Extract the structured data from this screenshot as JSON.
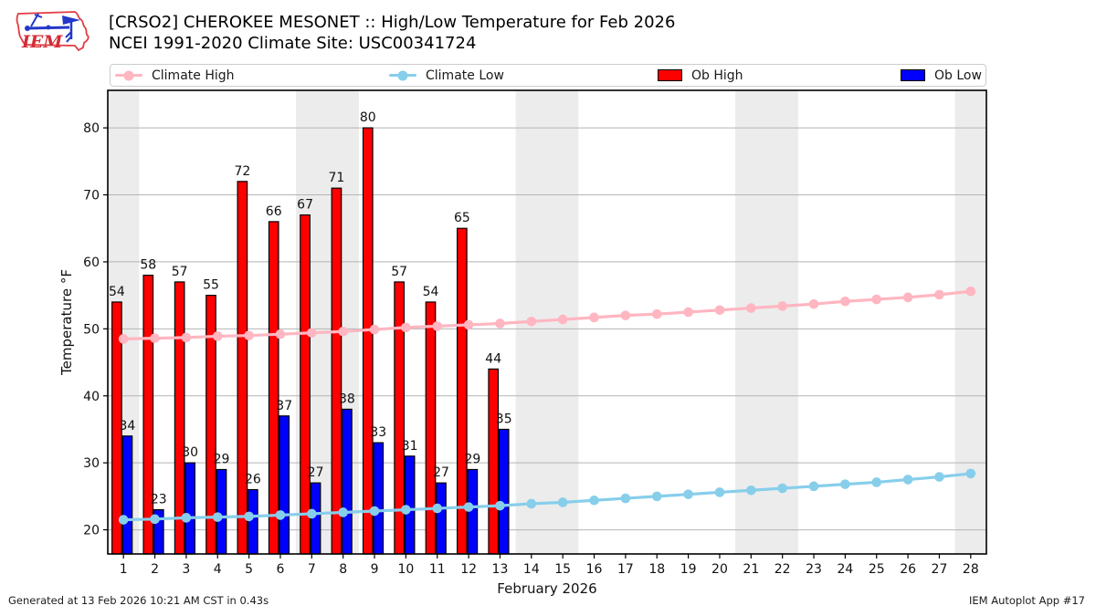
{
  "header": {
    "title_line1": "[CRSO2] CHEROKEE MESONET :: High/Low Temperature for Feb 2026",
    "title_line2": "NCEI 1991-2020 Climate Site: USC00341724",
    "logo_text": "IEM"
  },
  "footer": {
    "left": "Generated at 13 Feb 2026 10:21 AM CST in 0.43s",
    "right": "IEM Autoplot App #17"
  },
  "chart_data": {
    "type": "bar",
    "title": "[CRSO2] CHEROKEE MESONET :: High/Low Temperature for Feb 2026",
    "subtitle": "NCEI 1991-2020 Climate Site: USC00341724",
    "xlabel": "February 2026",
    "ylabel": "Temperature °F",
    "legend_position": "top",
    "grid": true,
    "days": [
      1,
      2,
      3,
      4,
      5,
      6,
      7,
      8,
      9,
      10,
      11,
      12,
      13,
      14,
      15,
      16,
      17,
      18,
      19,
      20,
      21,
      22,
      23,
      24,
      25,
      26,
      27,
      28
    ],
    "xlim": [
      0.5,
      28.5
    ],
    "ylim": [
      16.4,
      85.6
    ],
    "yticks": [
      20,
      30,
      40,
      50,
      60,
      70,
      80
    ],
    "weekend_bands": [
      [
        0.5,
        1.5
      ],
      [
        6.5,
        8.5
      ],
      [
        13.5,
        15.5
      ],
      [
        20.5,
        22.5
      ],
      [
        27.5,
        28.5
      ]
    ],
    "weekend_band_color": "#ececec",
    "series": [
      {
        "name": "Climate High",
        "type": "line",
        "color": "#ffb6c1",
        "values": [
          48.5,
          48.6,
          48.7,
          48.9,
          49.0,
          49.2,
          49.4,
          49.6,
          49.9,
          50.2,
          50.4,
          50.6,
          50.8,
          51.1,
          51.4,
          51.7,
          52.0,
          52.2,
          52.5,
          52.8,
          53.1,
          53.4,
          53.7,
          54.1,
          54.4,
          54.7,
          55.1,
          55.6
        ]
      },
      {
        "name": "Climate Low",
        "type": "line",
        "color": "#87ceeb",
        "values": [
          21.5,
          21.6,
          21.8,
          21.9,
          22.0,
          22.2,
          22.4,
          22.6,
          22.8,
          23.0,
          23.2,
          23.4,
          23.6,
          23.9,
          24.1,
          24.4,
          24.7,
          25.0,
          25.3,
          25.6,
          25.9,
          26.2,
          26.5,
          26.8,
          27.1,
          27.5,
          27.9,
          28.4
        ]
      },
      {
        "name": "Ob High",
        "type": "bar",
        "color": "#ff0000",
        "values": [
          54,
          58,
          57,
          55,
          72,
          66,
          67,
          71,
          80,
          57,
          54,
          65,
          44
        ]
      },
      {
        "name": "Ob Low",
        "type": "bar",
        "color": "#0000ff",
        "values": [
          34,
          23,
          30,
          29,
          26,
          37,
          27,
          38,
          33,
          31,
          27,
          29,
          35
        ]
      }
    ]
  }
}
